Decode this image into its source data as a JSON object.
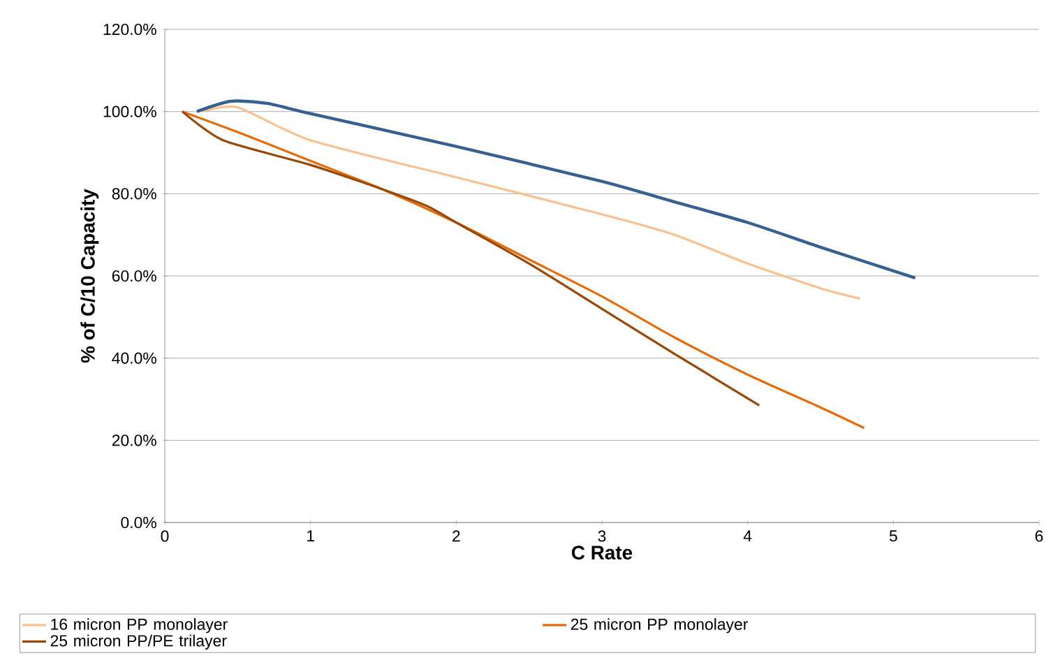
{
  "chart_data": {
    "type": "line",
    "xlabel": "C Rate",
    "ylabel": "% of C/10 Capacity",
    "xlim": [
      0,
      6
    ],
    "xticks": [
      0,
      1,
      2,
      3,
      4,
      5,
      6
    ],
    "ylim": [
      0,
      120
    ],
    "yticks": [
      {
        "value": 0,
        "label": "0.0%"
      },
      {
        "value": 20,
        "label": "20.0%"
      },
      {
        "value": 40,
        "label": "40.0%"
      },
      {
        "value": 60,
        "label": "60.0%"
      },
      {
        "value": 80,
        "label": "80.0%"
      },
      {
        "value": 100,
        "label": "100.0%"
      },
      {
        "value": 120,
        "label": "120.0%"
      }
    ],
    "grid": "y",
    "legend": "bottom",
    "marker": "none",
    "line_style": "solid",
    "series": [
      {
        "name": "16 micron PP monolayer",
        "color": "#fac090",
        "x": [
          0.26,
          0.5,
          1,
          2,
          3,
          3.5,
          4,
          4.5,
          4.77
        ],
        "values": [
          100,
          101,
          93,
          84,
          75,
          70,
          63,
          57,
          54.5
        ]
      },
      {
        "name": "25 micron PP monolayer",
        "color": "#e46c0a",
        "x": [
          0.12,
          0.5,
          1,
          1.5,
          2,
          2.5,
          3,
          3.5,
          4,
          4.5,
          4.8
        ],
        "values": [
          100,
          95,
          88,
          81,
          73,
          64,
          55,
          45,
          36,
          28,
          23
        ]
      },
      {
        "name": "25 micron PP/PE trilayer",
        "color": "#984807",
        "x": [
          0.12,
          0.4,
          1,
          1.5,
          1.8,
          2,
          2.5,
          3,
          3.5,
          4.08
        ],
        "values": [
          100,
          93,
          87,
          81,
          77,
          73,
          63,
          52,
          41,
          28.5
        ]
      },
      {
        "color": "#376092",
        "x": [
          0.22,
          0.45,
          0.7,
          1,
          2,
          3,
          3.5,
          4,
          4.5,
          5.15
        ],
        "values": [
          100,
          102.5,
          102,
          99.5,
          91.5,
          83,
          78,
          73,
          67,
          59.5
        ]
      }
    ]
  }
}
